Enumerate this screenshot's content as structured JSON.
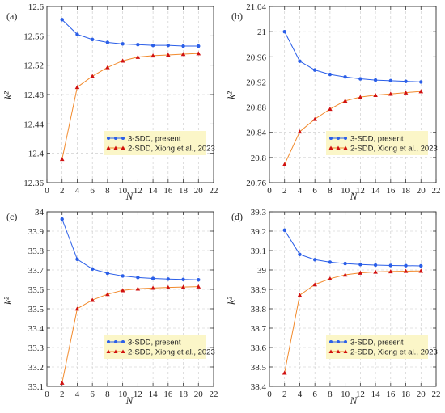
{
  "chart_data": [
    {
      "type": "line",
      "panel_label": "(a)",
      "xlabel": "N",
      "ylabel": "k²",
      "xlim": [
        0,
        22
      ],
      "ylim": [
        12.36,
        12.6
      ],
      "xticks": [
        0,
        2,
        4,
        6,
        8,
        10,
        12,
        14,
        16,
        18,
        20,
        22
      ],
      "yticks": [
        12.36,
        12.4,
        12.44,
        12.48,
        12.52,
        12.56,
        12.6
      ],
      "ytick_labels": [
        "12.36",
        "12.4",
        "12.44",
        "12.48",
        "12.52",
        "12.56",
        "12.6"
      ],
      "grid": true,
      "legend_position": "lower-right",
      "x": [
        2,
        4,
        6,
        8,
        10,
        12,
        14,
        16,
        18,
        20
      ],
      "series": [
        {
          "name": "3-SDD, present",
          "color": "#2a5ee8",
          "marker": "circle",
          "values": [
            12.582,
            12.562,
            12.555,
            12.551,
            12.549,
            12.548,
            12.547,
            12.547,
            12.546,
            12.546
          ]
        },
        {
          "name": "2-SDD, Xiong et al., 2023",
          "color": "#f28a2c",
          "marker_color": "#d01010",
          "marker": "triangle",
          "values": [
            12.392,
            12.49,
            12.505,
            12.517,
            12.526,
            12.531,
            12.533,
            12.534,
            12.535,
            12.536
          ]
        }
      ]
    },
    {
      "type": "line",
      "panel_label": "(b)",
      "xlabel": "N",
      "ylabel": "k²",
      "xlim": [
        0,
        22
      ],
      "ylim": [
        20.76,
        21.04
      ],
      "xticks": [
        0,
        2,
        4,
        6,
        8,
        10,
        12,
        14,
        16,
        18,
        20,
        22
      ],
      "yticks": [
        20.76,
        20.8,
        20.84,
        20.88,
        20.92,
        20.96,
        21.0,
        21.04
      ],
      "ytick_labels": [
        "20.76",
        "20.8",
        "20.84",
        "20.88",
        "20.92",
        "20.96",
        "21",
        "21.04"
      ],
      "grid": true,
      "legend_position": "lower-right",
      "x": [
        2,
        4,
        6,
        8,
        10,
        12,
        14,
        16,
        18,
        20
      ],
      "series": [
        {
          "name": "3-SDD, present",
          "color": "#2a5ee8",
          "marker": "circle",
          "values": [
            21.0,
            20.953,
            20.939,
            20.932,
            20.928,
            20.925,
            20.923,
            20.922,
            20.921,
            20.92
          ]
        },
        {
          "name": "2-SDD, Xiong et al., 2023",
          "color": "#f28a2c",
          "marker_color": "#d01010",
          "marker": "triangle",
          "values": [
            20.789,
            20.841,
            20.861,
            20.877,
            20.89,
            20.896,
            20.899,
            20.901,
            20.903,
            20.905
          ]
        }
      ]
    },
    {
      "type": "line",
      "panel_label": "(c)",
      "xlabel": "N",
      "ylabel": "k²",
      "xlim": [
        0,
        22
      ],
      "ylim": [
        33.1,
        34.0
      ],
      "xticks": [
        0,
        2,
        4,
        6,
        8,
        10,
        12,
        14,
        16,
        18,
        20,
        22
      ],
      "yticks": [
        33.1,
        33.2,
        33.3,
        33.4,
        33.5,
        33.6,
        33.7,
        33.8,
        33.9,
        34.0
      ],
      "ytick_labels": [
        "33.1",
        "33.2",
        "33.3",
        "33.4",
        "33.5",
        "33.6",
        "33.7",
        "33.8",
        "33.9",
        "34"
      ],
      "grid": true,
      "legend_position": "lower-right",
      "x": [
        2,
        4,
        6,
        8,
        10,
        12,
        14,
        16,
        18,
        20
      ],
      "series": [
        {
          "name": "3-SDD, present",
          "color": "#2a5ee8",
          "marker": "circle",
          "values": [
            33.962,
            33.755,
            33.705,
            33.683,
            33.669,
            33.661,
            33.656,
            33.653,
            33.651,
            33.649
          ]
        },
        {
          "name": "2-SDD, Xiong et al., 2023",
          "color": "#f28a2c",
          "marker_color": "#d01010",
          "marker": "triangle",
          "values": [
            33.118,
            33.5,
            33.545,
            33.575,
            33.595,
            33.603,
            33.607,
            33.61,
            33.612,
            33.614
          ]
        }
      ]
    },
    {
      "type": "line",
      "panel_label": "(d)",
      "xlabel": "N",
      "ylabel": "k²",
      "xlim": [
        0,
        22
      ],
      "ylim": [
        38.4,
        39.3
      ],
      "xticks": [
        0,
        2,
        4,
        6,
        8,
        10,
        12,
        14,
        16,
        18,
        20,
        22
      ],
      "yticks": [
        38.4,
        38.5,
        38.6,
        38.7,
        38.8,
        38.9,
        39.0,
        39.1,
        39.2,
        39.3
      ],
      "ytick_labels": [
        "38.4",
        "38.5",
        "38.6",
        "38.7",
        "38.8",
        "38.9",
        "39",
        "39.1",
        "39.2",
        "39.3"
      ],
      "grid": true,
      "legend_position": "lower-right",
      "x": [
        2,
        4,
        6,
        8,
        10,
        12,
        14,
        16,
        18,
        20
      ],
      "series": [
        {
          "name": "3-SDD, present",
          "color": "#2a5ee8",
          "marker": "circle",
          "values": [
            39.205,
            39.08,
            39.053,
            39.04,
            39.033,
            39.028,
            39.025,
            39.023,
            39.022,
            39.021
          ]
        },
        {
          "name": "2-SDD, Xiong et al., 2023",
          "color": "#f28a2c",
          "marker_color": "#d01010",
          "marker": "triangle",
          "values": [
            38.47,
            38.87,
            38.925,
            38.955,
            38.975,
            38.985,
            38.99,
            38.992,
            38.994,
            38.995
          ]
        }
      ]
    }
  ],
  "colors": {
    "legend_background": "#fbf6c8",
    "grid": "#c8c8c8",
    "axis": "#333333"
  }
}
